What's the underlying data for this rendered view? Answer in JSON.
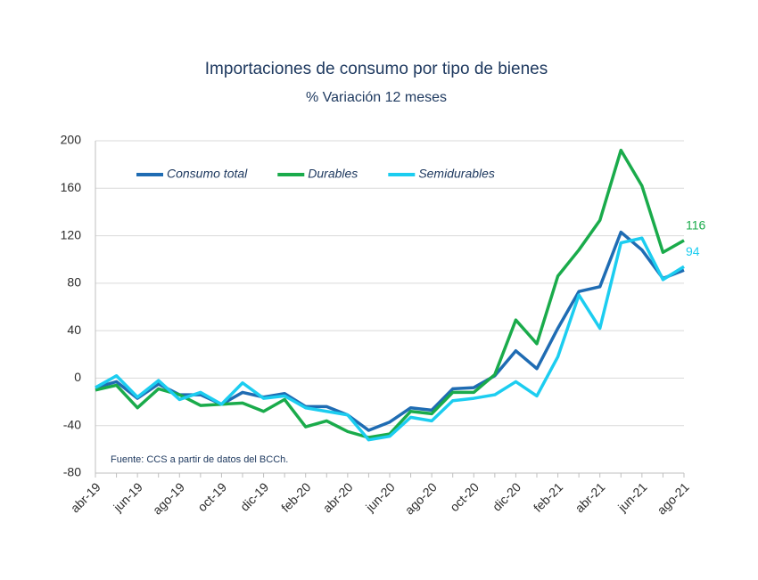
{
  "chart_data": {
    "type": "line",
    "title": "Importaciones de consumo por tipo de bienes",
    "subtitle": "% Variación 12 meses",
    "source": "Fuente: CCS a partir de datos del BCCh.",
    "categories": [
      "abr-19",
      null,
      "jun-19",
      null,
      "ago-19",
      null,
      "oct-19",
      null,
      "dic-19",
      null,
      "feb-20",
      null,
      "abr-20",
      null,
      "jun-20",
      null,
      "ago-20",
      null,
      "oct-20",
      null,
      "dic-20",
      null,
      "feb-21",
      null,
      "abr-21",
      null,
      "jun-21",
      null,
      "ago-21"
    ],
    "series": [
      {
        "name": "Consumo total",
        "color": "#1f6cb3",
        "values": [
          -8,
          -3,
          -17,
          -5,
          -14,
          -14,
          -22,
          -12,
          -16,
          -13,
          -24,
          -24,
          -31,
          -44,
          -37,
          -25,
          -27,
          -9,
          -8,
          2,
          23,
          8,
          42,
          73,
          77,
          123,
          108,
          84,
          91
        ]
      },
      {
        "name": "Durables",
        "color": "#1aab4b",
        "values": [
          -10,
          -6,
          -25,
          -9,
          -14,
          -23,
          -22,
          -21,
          -28,
          -18,
          -41,
          -36,
          -45,
          -50,
          -47,
          -28,
          -30,
          -12,
          -12,
          3,
          49,
          29,
          86,
          108,
          133,
          192,
          162,
          106,
          116
        ]
      },
      {
        "name": "Semidurables",
        "color": "#1ccdf0",
        "values": [
          -8,
          2,
          -16,
          -2,
          -18,
          -12,
          -22,
          -4,
          -17,
          -15,
          -25,
          -28,
          -31,
          -52,
          -49,
          -33,
          -36,
          -19,
          -17,
          -14,
          -3,
          -15,
          18,
          70,
          42,
          114,
          118,
          83,
          94
        ]
      }
    ],
    "ylim": [
      -80,
      200
    ],
    "yticks": [
      -80,
      -40,
      0,
      40,
      80,
      120,
      160,
      200
    ],
    "grid": true,
    "end_labels": [
      1,
      2
    ]
  }
}
